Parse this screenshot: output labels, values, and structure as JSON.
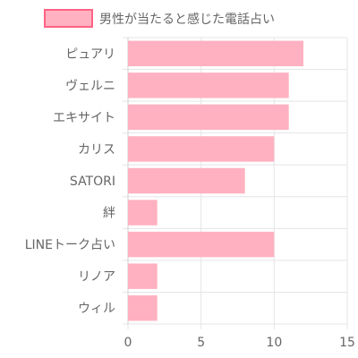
{
  "chart_data": {
    "type": "bar",
    "orientation": "horizontal",
    "categories": [
      "ピュアリ",
      "ヴェルニ",
      "エキサイト",
      "カリス",
      "SATORI",
      "絆",
      "LINEトーク占い",
      "リノア",
      "ウィル"
    ],
    "series": [
      {
        "name": "男性が当たると感じた電話占い",
        "values": [
          12,
          11,
          11,
          10,
          8,
          2,
          10,
          2,
          2
        ]
      }
    ],
    "xlim": [
      0,
      15
    ],
    "x_ticks": [
      "0",
      "5",
      "10",
      "15"
    ],
    "grid": true,
    "legend_position": "top",
    "colors": {
      "bar_fill": "#ffb1c1",
      "bar_border": "#ff6384",
      "grid": "#e5e5e5",
      "text": "#666666"
    }
  }
}
